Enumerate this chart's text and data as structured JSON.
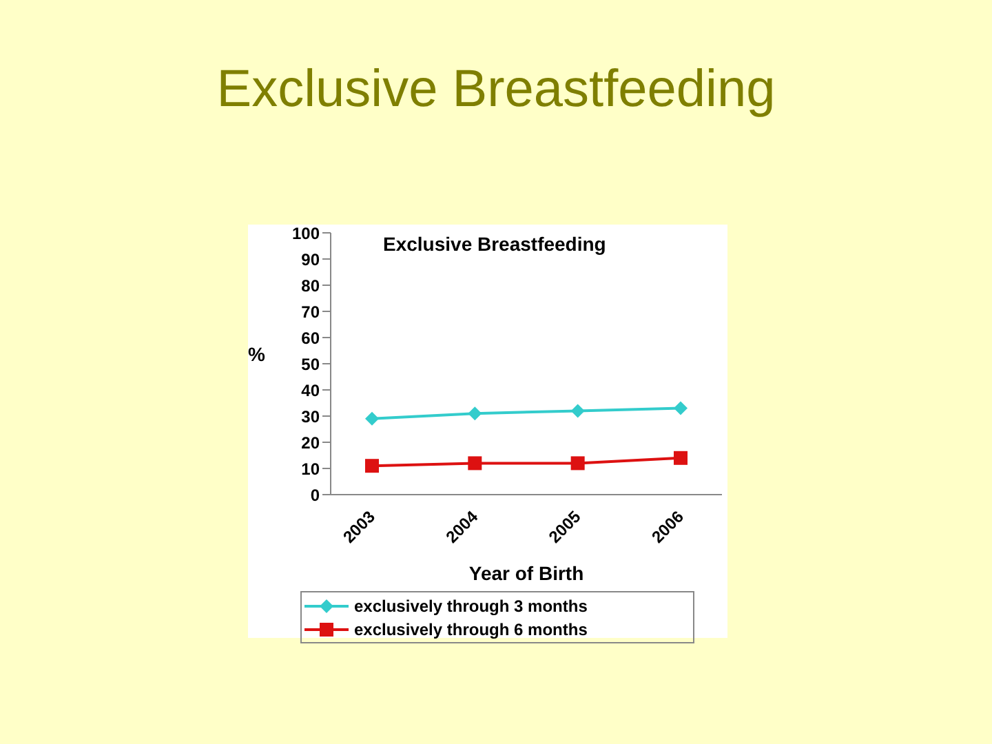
{
  "chart_data": {
    "type": "line",
    "title": "Exclusive Breastfeeding",
    "subtitle": "Exclusive Breastfeeding",
    "xlabel": "Year of Birth",
    "ylabel": "%",
    "categories": [
      "2003",
      "2004",
      "2005",
      "2006"
    ],
    "series": [
      {
        "name": "exclusively through 3 months",
        "color": "#33cccc",
        "marker": "diamond",
        "values": [
          29,
          31,
          32,
          33
        ]
      },
      {
        "name": "exclusively through 6 months",
        "color": "#dd1111",
        "marker": "square",
        "values": [
          11,
          12,
          12,
          14
        ]
      }
    ],
    "ylim": [
      0,
      100
    ],
    "yticks": [
      0,
      10,
      20,
      30,
      40,
      50,
      60,
      70,
      80,
      90,
      100
    ],
    "grid": false,
    "legend": "bottom"
  }
}
